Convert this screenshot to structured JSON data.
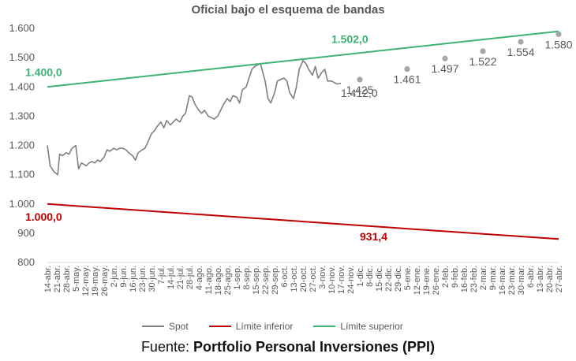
{
  "chart_data": {
    "type": "line",
    "title": "Oficial bajo el esquema de bandas",
    "ylim": [
      800,
      1600
    ],
    "yticks": [
      800,
      900,
      1000,
      1100,
      1200,
      1300,
      1400,
      1500,
      1600
    ],
    "ytick_labels": [
      "800",
      "900",
      "1.000",
      "1.100",
      "1.200",
      "1.300",
      "1.400",
      "1.500",
      "1.600"
    ],
    "xtick_labels": [
      "14-abr.",
      "21-abr.",
      "28-abr.",
      "5-may.",
      "12-may.",
      "19-may.",
      "26-may.",
      "2-jun.",
      "9-jun.",
      "16-jun.",
      "23-jun.",
      "30-jun.",
      "7-jul.",
      "14-jul.",
      "21-jul.",
      "28-jul.",
      "4-ago.",
      "11-ago.",
      "18-ago.",
      "25-ago.",
      "1-sep.",
      "8-sep.",
      "15-sep.",
      "22-sep.",
      "29-sep.",
      "6-oct.",
      "13-oct.",
      "20-oct.",
      "27-oct.",
      "3-nov.",
      "10-nov.",
      "17-nov.",
      "24-nov.",
      "1-dic.",
      "8-dic.",
      "15-dic.",
      "22-dic.",
      "29-dic.",
      "5-ene.",
      "12-ene.",
      "19-ene.",
      "26-ene.",
      "2-feb.",
      "9-feb.",
      "16-feb.",
      "23-feb.",
      "2-mar.",
      "9-mar.",
      "16-mar.",
      "23-mar.",
      "30-mar.",
      "6-abr.",
      "13-abr.",
      "20-abr.",
      "27-abr."
    ],
    "grid": false,
    "legend_position": "bottom",
    "series": [
      {
        "name": "Spot",
        "color": "#7f7f7f",
        "x_index": [
          0,
          0.3,
          0.7,
          1.1,
          1.3,
          1.6,
          2.0,
          2.3,
          2.6,
          3.0,
          3.3,
          3.6,
          3.9,
          4.1,
          4.4,
          4.7,
          5.0,
          5.3,
          5.6,
          6.0,
          6.3,
          6.6,
          7.0,
          7.3,
          7.6,
          8.0,
          8.3,
          8.6,
          9.0,
          9.3,
          9.6,
          10.0,
          10.3,
          10.6,
          11.0,
          11.3,
          11.6,
          12.0,
          12.3,
          12.6,
          13.0,
          13.3,
          13.6,
          14.0,
          14.3,
          14.6,
          15.0,
          15.3,
          15.6,
          16.0,
          16.3,
          16.6,
          17.0,
          17.3,
          17.6,
          18.0,
          18.3,
          18.6,
          19.0,
          19.3,
          19.6,
          20.0,
          20.3,
          20.6,
          21.0,
          21.3,
          21.6,
          21.9,
          22.2,
          22.5,
          23.0,
          23.3,
          23.6,
          24.0,
          24.3,
          24.6,
          25.0,
          25.3,
          25.6,
          26.0,
          26.3,
          26.6,
          27.0,
          27.3,
          27.6,
          28.0,
          28.3,
          28.6,
          29.0,
          29.3,
          29.6,
          30.0,
          30.3,
          30.6,
          31.0
        ],
        "values": [
          1200,
          1130,
          1110,
          1100,
          1170,
          1165,
          1175,
          1170,
          1190,
          1200,
          1120,
          1140,
          1135,
          1130,
          1140,
          1145,
          1140,
          1150,
          1145,
          1160,
          1185,
          1180,
          1190,
          1185,
          1190,
          1190,
          1185,
          1175,
          1165,
          1150,
          1175,
          1185,
          1190,
          1210,
          1240,
          1250,
          1265,
          1280,
          1260,
          1285,
          1270,
          1280,
          1290,
          1280,
          1300,
          1310,
          1370,
          1365,
          1340,
          1320,
          1310,
          1320,
          1300,
          1295,
          1290,
          1300,
          1320,
          1340,
          1360,
          1350,
          1370,
          1365,
          1345,
          1390,
          1400,
          1430,
          1460,
          1470,
          1475,
          1480,
          1420,
          1360,
          1345,
          1380,
          1420,
          1425,
          1430,
          1420,
          1380,
          1360,
          1400,
          1460,
          1490,
          1480,
          1460,
          1440,
          1470,
          1430,
          1450,
          1460,
          1420,
          1420,
          1415,
          1410,
          1412
        ]
      },
      {
        "name": "Límite inferior",
        "color": "#c00000",
        "x_index": [
          0,
          54
        ],
        "values": [
          1000,
          880
        ]
      },
      {
        "name": "Límite superior",
        "color": "#3cb371",
        "x_index": [
          0,
          54
        ],
        "values": [
          1400,
          1590
        ]
      }
    ],
    "forecast_points": {
      "color": "#a6a6a6",
      "x_index": [
        33,
        38,
        42,
        46,
        50,
        54
      ],
      "values": [
        1425,
        1461,
        1497,
        1522,
        1554,
        1580
      ],
      "labels": [
        "1.425",
        "1.461",
        "1.497",
        "1.522",
        "1.554",
        "1.580"
      ]
    },
    "annotations": [
      {
        "text": "1.400,0",
        "color": "#3cb371",
        "x_index": 0,
        "value": 1400
      },
      {
        "text": "1.502,0",
        "color": "#3cb371",
        "x_index": 30,
        "value": 1502
      },
      {
        "text": "1.000,0",
        "color": "#c00000",
        "x_index": 0,
        "value": 1000
      },
      {
        "text": "931,4",
        "color": "#c00000",
        "x_index": 33,
        "value": 931.4
      },
      {
        "text": "1.412,0",
        "color": "#595959",
        "x_index": 31,
        "value": 1412
      }
    ]
  },
  "source": {
    "prefix": "Fuente: ",
    "name": "Portfolio Personal Inversiones (PPI)"
  }
}
